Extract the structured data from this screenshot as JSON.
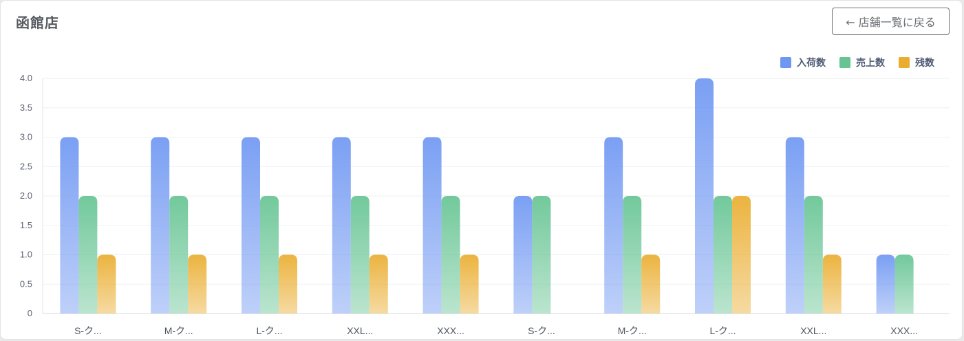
{
  "header": {
    "title": "函館店",
    "back_button_label": "← 店舗一覧に戻る"
  },
  "chart_data": {
    "type": "bar",
    "title": "",
    "xlabel": "",
    "ylabel": "",
    "ylim": [
      0,
      4.0
    ],
    "y_ticks": [
      "0",
      "0.5",
      "1.0",
      "1.5",
      "2.0",
      "2.5",
      "3.0",
      "3.5",
      "4.0"
    ],
    "grid": true,
    "legend_position": "top-right",
    "categories": [
      "S-ク...",
      "M-ク...",
      "L-ク...",
      "XXL...",
      "XXX...",
      "S-ク...",
      "M-ク...",
      "L-ク...",
      "XXL...",
      "XXX..."
    ],
    "series": [
      {
        "name": "入荷数",
        "color": "#6f97f2",
        "values": [
          3,
          3,
          3,
          3,
          3,
          2,
          3,
          4,
          3,
          1
        ]
      },
      {
        "name": "売上数",
        "color": "#66c493",
        "values": [
          2,
          2,
          2,
          2,
          2,
          2,
          2,
          2,
          2,
          1
        ]
      },
      {
        "name": "残数",
        "color": "#eaad2f",
        "values": [
          1,
          1,
          1,
          1,
          1,
          0,
          1,
          2,
          1,
          0
        ]
      }
    ]
  }
}
